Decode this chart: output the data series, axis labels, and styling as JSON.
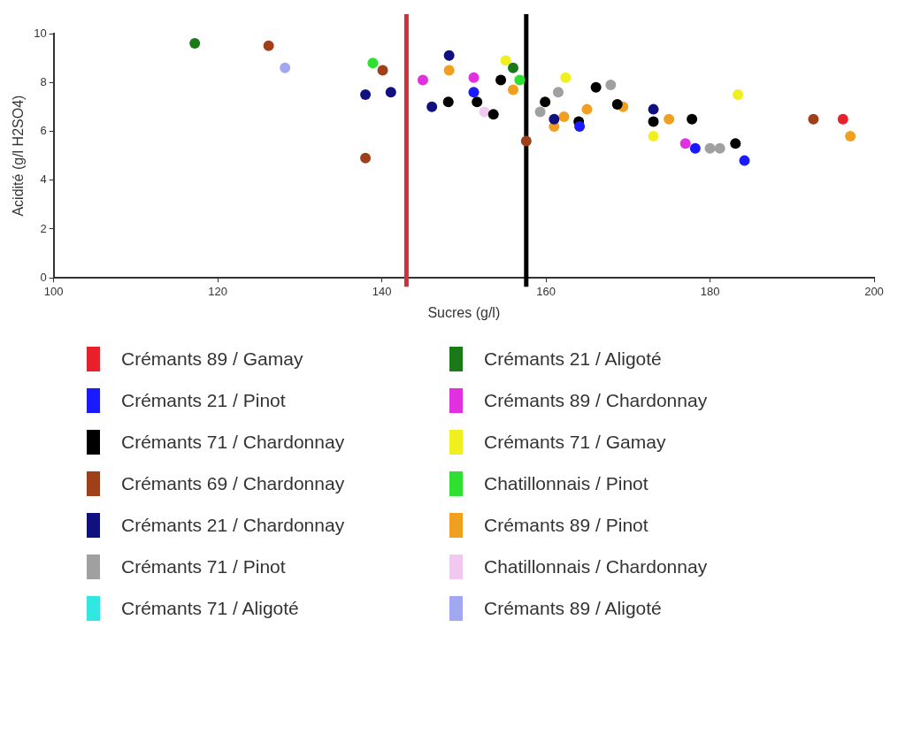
{
  "chart_data": {
    "type": "scatter",
    "xlabel": "Sucres (g/l)",
    "ylabel": "Acidité (g/l H2SO4)",
    "xlim": [
      100,
      200
    ],
    "xticks": [
      100,
      120,
      140,
      160,
      180,
      200
    ],
    "ylim": [
      0,
      10
    ],
    "yticks": [
      0,
      2,
      4,
      6,
      8,
      10
    ],
    "marker": "circle",
    "legend": "bottom",
    "ref_lines": [
      {
        "axis": "x",
        "value": 143.0,
        "color": "#d0303a"
      },
      {
        "axis": "x",
        "value": 157.6,
        "color": "#000000"
      }
    ],
    "series": [
      {
        "name": "Crémants 89 / Gamay",
        "color": "#e8202a",
        "x": [
          196.2
        ],
        "values": [
          6.5
        ]
      },
      {
        "name": "Crémants 21 / Pinot",
        "color": "#1a1aff",
        "x": [
          151.2,
          164.1,
          178.2,
          184.2
        ],
        "values": [
          7.6,
          6.2,
          5.3,
          4.8
        ]
      },
      {
        "name": "Crémants 71 / Chardonnay",
        "color": "#000000",
        "x": [
          148.1,
          151.6,
          153.6,
          154.5,
          159.9,
          164.0,
          166.1,
          168.7,
          173.1,
          177.8,
          183.1
        ],
        "values": [
          7.2,
          7.2,
          6.7,
          8.1,
          7.2,
          6.4,
          7.8,
          7.1,
          6.4,
          6.5,
          5.5
        ]
      },
      {
        "name": "Crémants 69 / Chardonnay",
        "color": "#a0401a",
        "x": [
          126.2,
          140.1,
          138.0,
          157.6,
          192.6
        ],
        "values": [
          9.5,
          8.5,
          4.9,
          5.6,
          6.5
        ]
      },
      {
        "name": "Crémants 21 / Chardonnay",
        "color": "#101080",
        "x": [
          138.0,
          141.1,
          146.1,
          148.2,
          161.0,
          173.1
        ],
        "values": [
          7.5,
          7.6,
          7.0,
          9.1,
          6.5,
          6.9
        ]
      },
      {
        "name": "Crémants 71 / Pinot",
        "color": "#a0a0a0",
        "x": [
          159.3,
          161.5,
          167.9,
          180.0,
          181.2
        ],
        "values": [
          6.8,
          7.6,
          7.9,
          5.3,
          5.3
        ]
      },
      {
        "name": "Crémants 71 / Aligoté",
        "color": "#30e8e0"
      },
      {
        "name": "Crémants 21 / Aligoté",
        "color": "#1a7a1a",
        "x": [
          117.2,
          156.0
        ],
        "values": [
          9.6,
          8.6
        ]
      },
      {
        "name": "Crémants 89 / Chardonnay",
        "color": "#e030e0",
        "x": [
          145.0,
          151.2,
          177.0
        ],
        "values": [
          8.1,
          8.2,
          5.5
        ]
      },
      {
        "name": "Crémants 71 / Gamay",
        "color": "#f0f020",
        "x": [
          155.1,
          162.4,
          173.1,
          183.4
        ],
        "values": [
          8.9,
          8.2,
          5.8,
          7.5
        ]
      },
      {
        "name": "Chatillonnais / Pinot",
        "color": "#30e030",
        "x": [
          138.9,
          156.8
        ],
        "values": [
          8.8,
          8.1
        ]
      },
      {
        "name": "Crémants 89 / Pinot",
        "color": "#f0a020",
        "x": [
          148.2,
          156.0,
          161.0,
          162.2,
          165.0,
          169.4,
          175.0,
          197.1
        ],
        "values": [
          8.5,
          7.7,
          6.2,
          6.6,
          6.9,
          7.0,
          6.5,
          5.8
        ]
      },
      {
        "name": "Chatillonnais / Chardonnay",
        "color": "#f0c8f0",
        "x": [
          152.5
        ],
        "values": [
          6.8
        ]
      },
      {
        "name": "Crémants 89 / Aligoté",
        "color": "#a0a8f0",
        "x": [
          128.2
        ],
        "values": [
          8.6
        ]
      }
    ]
  }
}
